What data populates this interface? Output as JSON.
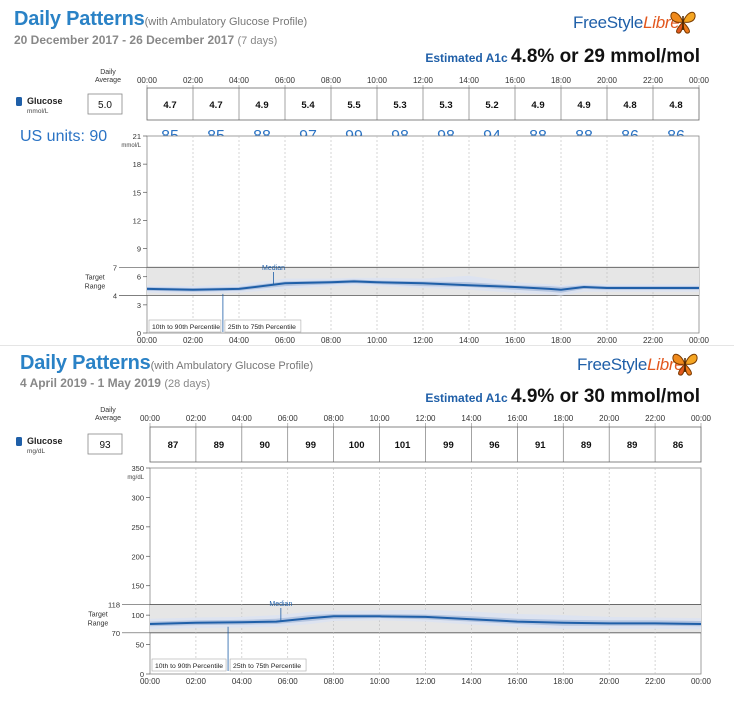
{
  "colors": {
    "title": "#2a82c6",
    "median": "#1f5fa8",
    "band_outer": "#dde3f0",
    "band_inner": "#b3c4e0",
    "target_band": "#e6e6e6",
    "us_units": "#2a73c4"
  },
  "panels": [
    {
      "title": "Daily Patterns",
      "subtitle": "(with Ambulatory Glucose Profile)",
      "date_range": "20 December 2017 - 26 December 2017",
      "days": "(7 days)",
      "brand_a": "FreeStyle",
      "brand_b": "Libre",
      "a1c_label": "Estimated A1c",
      "a1c_value": "4.8% or 29 mmol/mol",
      "average_header_1": "Daily",
      "average_header_2": "Average",
      "glucose_label": "Glucose",
      "unit_label": "mmol/L",
      "daily_average": "5.0",
      "target_label_1": "Target",
      "target_label_2": "Range",
      "median_label": "Median",
      "legend_outer": "10th to 90th Percentile",
      "legend_inner": "25th to 75th Percentile",
      "us_units_label": "US units: 90",
      "chart_data": {
        "type": "line",
        "x_ticks": [
          "00:00",
          "02:00",
          "04:00",
          "06:00",
          "08:00",
          "10:00",
          "12:00",
          "14:00",
          "16:00",
          "18:00",
          "20:00",
          "22:00",
          "00:00"
        ],
        "hourly_averages": [
          "4.7",
          "4.7",
          "4.9",
          "5.4",
          "5.5",
          "5.3",
          "5.3",
          "5.2",
          "4.9",
          "4.9",
          "4.8",
          "4.8"
        ],
        "us_unit_values": [
          "85",
          "85",
          "88",
          "97",
          "99",
          "98",
          "98",
          "94",
          "88",
          "88",
          "86",
          "86"
        ],
        "y_ticks": [
          0,
          3,
          6,
          9,
          12,
          15,
          18,
          21
        ],
        "ylim": [
          0,
          21
        ],
        "y_unit": "mmol/L",
        "target_range": [
          4,
          7
        ],
        "target_labels": [
          "7",
          "4"
        ],
        "x": [
          0,
          2,
          4,
          6,
          8,
          9,
          10,
          12,
          14,
          16,
          17.5,
          18,
          19,
          20,
          22,
          24
        ],
        "median": [
          4.7,
          4.6,
          4.7,
          5.3,
          5.4,
          5.5,
          5.4,
          5.3,
          5.1,
          4.9,
          4.7,
          4.6,
          4.9,
          4.8,
          4.8,
          4.8
        ],
        "p25": [
          4.5,
          4.4,
          4.5,
          5.0,
          5.2,
          5.3,
          5.2,
          5.0,
          4.9,
          4.6,
          4.4,
          4.3,
          4.7,
          4.6,
          4.6,
          4.6
        ],
        "p75": [
          4.9,
          4.8,
          4.9,
          5.5,
          5.6,
          5.7,
          5.6,
          5.5,
          5.4,
          5.1,
          5.0,
          4.9,
          5.1,
          5.0,
          5.0,
          5.0
        ],
        "p10": [
          4.3,
          4.2,
          4.3,
          4.7,
          5.0,
          5.1,
          5.0,
          4.8,
          4.6,
          4.3,
          4.1,
          4.0,
          4.4,
          4.4,
          4.4,
          4.4
        ],
        "p90": [
          5.1,
          5.0,
          5.2,
          5.8,
          5.8,
          5.9,
          5.9,
          5.8,
          6.1,
          5.4,
          5.2,
          5.1,
          5.3,
          5.2,
          5.2,
          5.2
        ]
      }
    },
    {
      "title": "Daily Patterns",
      "subtitle": "(with Ambulatory Glucose Profile)",
      "date_range": "4 April 2019 - 1 May 2019",
      "days": "(28 days)",
      "brand_a": "FreeStyle",
      "brand_b": "Libre",
      "a1c_label": "Estimated A1c",
      "a1c_value": "4.9% or 30 mmol/mol",
      "average_header_1": "Daily",
      "average_header_2": "Average",
      "glucose_label": "Glucose",
      "unit_label": "mg/dL",
      "daily_average": "93",
      "target_label_1": "Target",
      "target_label_2": "Range",
      "median_label": "Median",
      "legend_outer": "10th to 90th Percentile",
      "legend_inner": "25th to 75th Percentile",
      "chart_data": {
        "type": "line",
        "x_ticks": [
          "00:00",
          "02:00",
          "04:00",
          "06:00",
          "08:00",
          "10:00",
          "12:00",
          "14:00",
          "16:00",
          "18:00",
          "20:00",
          "22:00",
          "00:00"
        ],
        "hourly_averages": [
          "87",
          "89",
          "90",
          "99",
          "100",
          "101",
          "99",
          "96",
          "91",
          "89",
          "89",
          "86"
        ],
        "y_ticks": [
          0,
          50,
          100,
          150,
          200,
          250,
          300,
          350
        ],
        "ylim": [
          0,
          350
        ],
        "y_unit": "mg/dL",
        "target_range": [
          70,
          118
        ],
        "target_labels": [
          "118",
          "70"
        ],
        "x": [
          0,
          2,
          4,
          5.5,
          7,
          8,
          10,
          12,
          14,
          16,
          18,
          20,
          22,
          24
        ],
        "median": [
          85,
          87,
          88,
          89,
          95,
          98,
          98,
          97,
          93,
          89,
          87,
          86,
          86,
          85
        ],
        "p25": [
          81,
          83,
          84,
          85,
          90,
          94,
          95,
          93,
          89,
          85,
          82,
          82,
          82,
          81
        ],
        "p75": [
          89,
          91,
          92,
          94,
          100,
          102,
          102,
          101,
          98,
          94,
          92,
          91,
          91,
          90
        ],
        "p10": [
          76,
          78,
          79,
          80,
          85,
          90,
          91,
          89,
          84,
          80,
          77,
          77,
          77,
          76
        ],
        "p90": [
          94,
          96,
          97,
          100,
          106,
          107,
          108,
          109,
          106,
          102,
          100,
          97,
          96,
          95
        ]
      }
    }
  ]
}
